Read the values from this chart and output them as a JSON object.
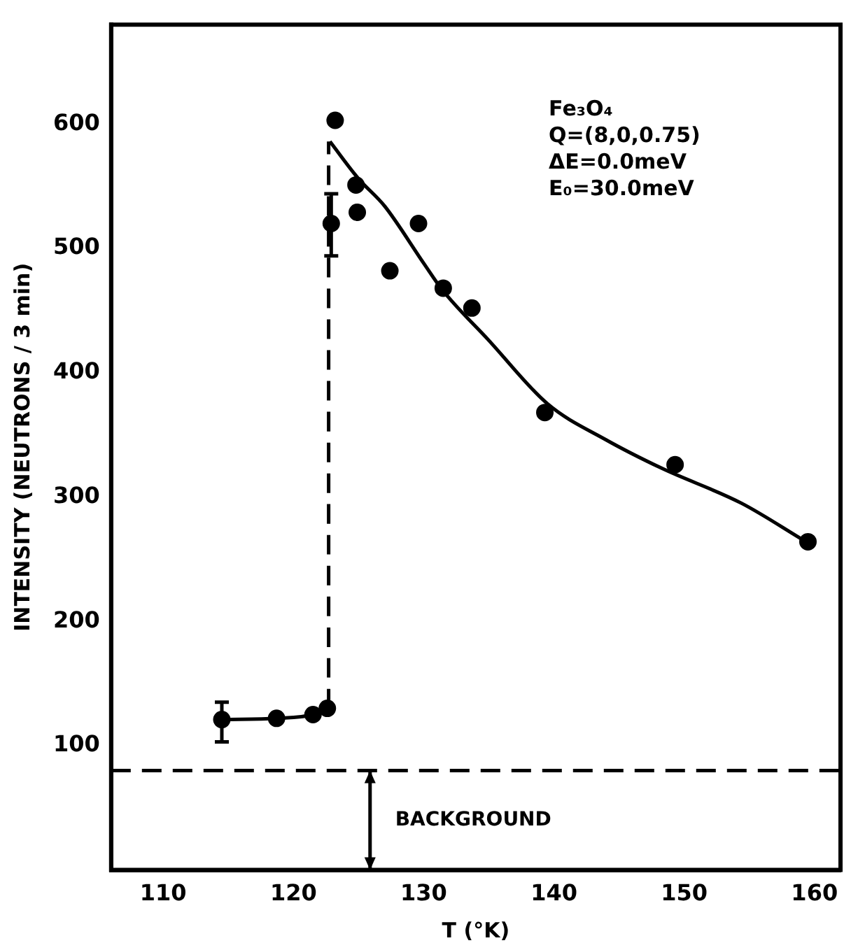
{
  "chart_data": {
    "type": "scatter",
    "xlabel": "T (°K)",
    "ylabel": "INTENSITY (NEUTRONS / 3 min)",
    "xlim": [
      106,
      162
    ],
    "xticks": [
      110,
      120,
      130,
      140,
      150,
      160
    ],
    "ylim": [
      0,
      680
    ],
    "yticks": [
      100,
      200,
      300,
      400,
      500,
      600
    ],
    "grid": false,
    "legend": false,
    "series": [
      {
        "type": "line",
        "color": "#000000",
        "marker": "circle",
        "x": [
          114.5,
          118.7,
          121.5,
          122.6
        ],
        "values": [
          121,
          122,
          125,
          130
        ],
        "errors": [
          [
            103,
            135
          ],
          null,
          null,
          null
        ]
      },
      {
        "color": "#000000",
        "marker": "circle",
        "x": [
          123.2,
          122.9,
          124.8,
          124.9,
          127.4,
          129.6,
          131.5,
          133.7,
          139.3,
          149.3,
          159.5
        ],
        "values": [
          603,
          520,
          551,
          529,
          482,
          520,
          468,
          452,
          368,
          326,
          264
        ],
        "errors": [
          null,
          [
            494,
            544
          ],
          null,
          null,
          null,
          null,
          null,
          null,
          null,
          null,
          null
        ]
      },
      {
        "type": "line",
        "color": "#000000",
        "line_style": "solid",
        "x": [
          122.8,
          125,
          127,
          130,
          131.4,
          135,
          139.5,
          144,
          148.3,
          154.4,
          159.2
        ],
        "values": [
          586,
          556,
          534,
          488,
          467,
          426,
          375,
          346,
          323,
          295,
          265
        ]
      },
      {
        "type": "line",
        "color": "#000000",
        "line_style": "dashed",
        "x": [
          122.7,
          122.7
        ],
        "values": [
          130,
          586
        ]
      }
    ],
    "ref_lines": [
      {
        "axis": "y",
        "value": 80,
        "label": "BACKGROUND",
        "line_style": "dashed",
        "color": "#000000"
      }
    ],
    "annotations": [
      "Fe₃O₄",
      "Q=(8,0,0.75)",
      "ΔE=0.0meV",
      "E₀=30.0meV"
    ]
  }
}
